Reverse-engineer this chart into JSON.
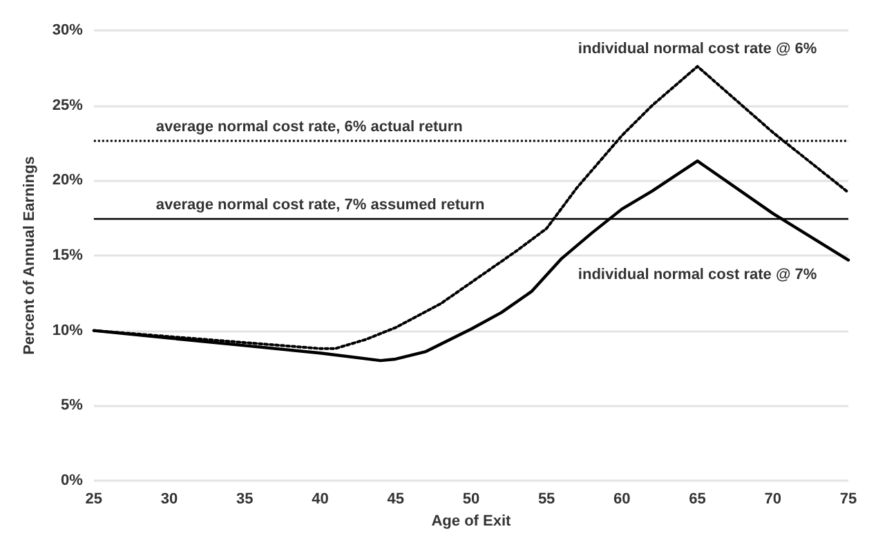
{
  "chart_data": {
    "type": "line",
    "xlabel": "Age of Exit",
    "ylabel": "Percent of Annual Earnings",
    "xlim": [
      25,
      75
    ],
    "xticks": [
      25,
      30,
      35,
      40,
      45,
      50,
      55,
      60,
      65,
      70,
      75
    ],
    "ylim": [
      0,
      30
    ],
    "yticks": [
      {
        "value": 0,
        "label": "0%"
      },
      {
        "value": 5,
        "label": "5%"
      },
      {
        "value": 10,
        "label": "10%"
      },
      {
        "value": 15,
        "label": "15%"
      },
      {
        "value": 20,
        "label": "20%"
      },
      {
        "value": 25,
        "label": "25%"
      },
      {
        "value": 30,
        "label": "30%"
      }
    ],
    "grid": "y",
    "legend": false,
    "marker": "none",
    "series": [
      {
        "name": "individual normal cost rate @ 6%",
        "color": "#000000",
        "line_style": "dotted",
        "x": [
          25,
          30,
          35,
          40,
          41,
          43,
          45,
          48,
          50,
          53,
          55,
          57,
          60,
          62,
          65,
          70,
          75
        ],
        "values": [
          10,
          9.6,
          9.2,
          8.8,
          8.8,
          9.4,
          10.2,
          11.8,
          13.2,
          15.3,
          16.8,
          19.5,
          23,
          25,
          27.6,
          23.2,
          19.2
        ]
      },
      {
        "name": "individual normal cost rate @ 7%",
        "color": "#000000",
        "line_style": "solid",
        "x": [
          25,
          30,
          35,
          40,
          44,
          45,
          47,
          50,
          52,
          54,
          56,
          58,
          60,
          62,
          65,
          70,
          75
        ],
        "values": [
          10,
          9.5,
          9,
          8.5,
          8,
          8.1,
          8.6,
          10.1,
          11.2,
          12.6,
          14.8,
          16.5,
          18.1,
          19.3,
          21.3,
          17.8,
          14.7
        ]
      }
    ],
    "ref_lines": [
      {
        "axis": "y",
        "value": 22.7,
        "label": "average normal cost rate, 6% actual return",
        "line_style": "dotted",
        "color": "#000000"
      },
      {
        "axis": "y",
        "value": 17.5,
        "label": "average normal cost rate, 7% assumed return",
        "line_style": "solid",
        "color": "#000000"
      }
    ]
  }
}
